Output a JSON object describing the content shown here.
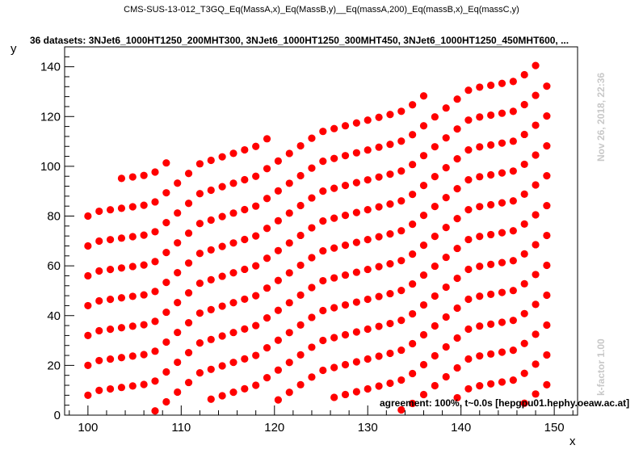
{
  "chart_data": {
    "type": "scatter",
    "title": "CMS-SUS-13-012_T3GQ_Eq(MassA,x)_Eq(MassB,y)__Eq(massA,200)_Eq(massB,x)_Eq(massC,y)",
    "subtitle": "36 datasets: 3NJet6_1000HT1250_200MHT300, 3NJet6_1000HT1250_300MHT450, 3NJet6_1000HT1250_450MHT600,  ...",
    "xlabel": "x",
    "ylabel": "y",
    "xlim": [
      97.5,
      152.5
    ],
    "ylim": [
      0,
      148
    ],
    "x_ticks": [
      100,
      110,
      120,
      130,
      140,
      150
    ],
    "y_ticks": [
      0,
      20,
      40,
      60,
      80,
      100,
      120,
      140
    ],
    "grid": false,
    "marker_color": "#ff0000",
    "x_range": [
      100,
      150
    ],
    "upper_envelope": [
      [
        100.5,
        81
      ],
      [
        104,
        98
      ],
      [
        110,
        103
      ],
      [
        115,
        110
      ],
      [
        125,
        116
      ],
      [
        130,
        123
      ],
      [
        140,
        133
      ],
      [
        145,
        138
      ],
      [
        149,
        143
      ]
    ],
    "lower_envelope": [
      [
        101,
        8
      ],
      [
        107,
        0
      ],
      [
        112,
        7
      ],
      [
        118,
        3
      ],
      [
        125,
        8
      ],
      [
        134,
        0
      ],
      [
        141,
        8
      ],
      [
        146,
        2
      ],
      [
        150,
        7
      ]
    ],
    "density_note": "",
    "timestamp": "Nov 26, 2018, 22:36",
    "kfactor": "k-factor 1.00",
    "agreement": "agreement: 100%, t~0.0s [hepgpu01.hephy.oeaw.ac.at]"
  }
}
